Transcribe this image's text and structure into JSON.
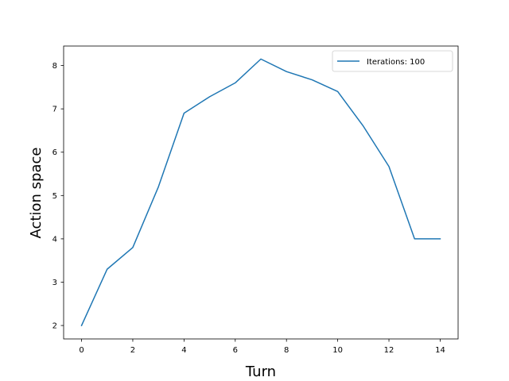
{
  "chart_data": {
    "type": "line",
    "title": "",
    "xlabel": "Turn",
    "ylabel": "Action space",
    "xlim": [
      -0.7,
      14.7
    ],
    "ylim": [
      1.69,
      8.45
    ],
    "xticks": [
      0,
      2,
      4,
      6,
      8,
      10,
      12,
      14
    ],
    "yticks": [
      2,
      3,
      4,
      5,
      6,
      7,
      8
    ],
    "grid": false,
    "legend_position": "top-right",
    "series": [
      {
        "name": "Iterations: 100",
        "color": "#1f77b4",
        "x": [
          0,
          1,
          2,
          3,
          4,
          5,
          6,
          7,
          8,
          9,
          10,
          11,
          12,
          13,
          14
        ],
        "y": [
          2.0,
          3.3,
          3.8,
          5.2,
          6.9,
          7.28,
          7.6,
          8.15,
          7.86,
          7.67,
          7.4,
          6.6,
          5.67,
          4.0,
          4.0
        ]
      }
    ]
  }
}
